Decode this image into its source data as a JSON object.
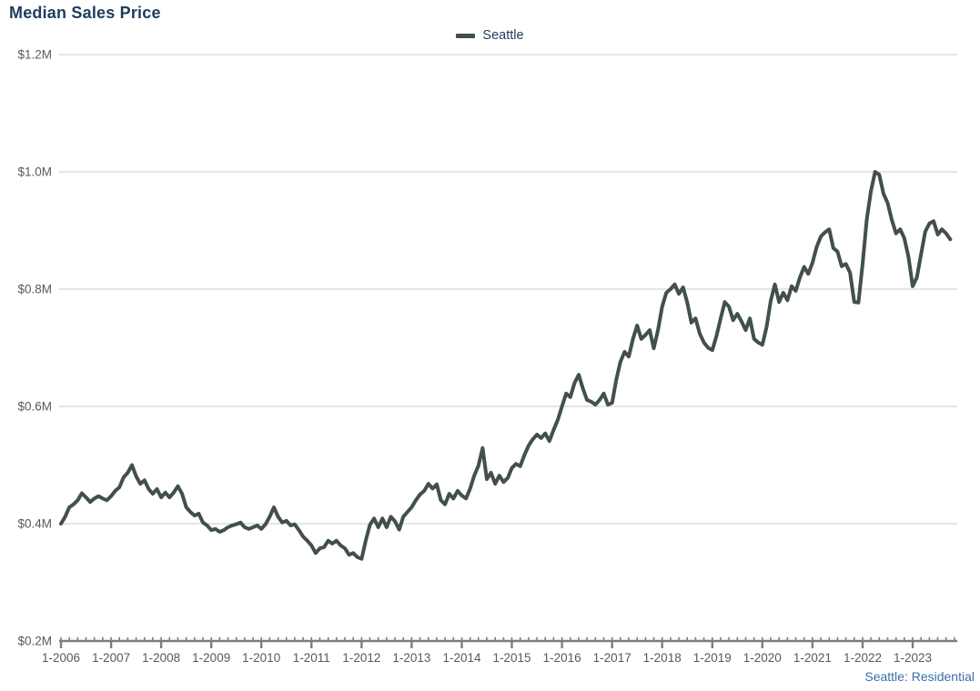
{
  "title": "Median Sales Price",
  "legend": {
    "label": "Seattle"
  },
  "footer": {
    "source_label": "Seattle: Residential"
  },
  "colors": {
    "title_text": "#1f3b5f",
    "series_line": "#42504c",
    "gridline": "#cbcbcb",
    "axis_line": "#7d7d7d",
    "tick_label": "#58595b",
    "footer_link": "#3a6fa6"
  },
  "axis": {
    "y_tick_labels": [
      "$1.2M",
      "$1.0M",
      "$0.8M",
      "$0.6M",
      "$0.4M",
      "$0.2M"
    ],
    "x_tick_labels": [
      "1-2006",
      "1-2007",
      "1-2008",
      "1-2009",
      "1-2010",
      "1-2011",
      "1-2012",
      "1-2013",
      "1-2014",
      "1-2015",
      "1-2016",
      "1-2017",
      "1-2018",
      "1-2019",
      "1-2020",
      "1-2021",
      "1-2022",
      "1-2023"
    ]
  },
  "chart_data": {
    "type": "line",
    "title": "Median Sales Price",
    "xlabel": "",
    "ylabel": "",
    "ylim": [
      0.2,
      1.2
    ],
    "y_tick_step": 0.2,
    "y_unit": "USD millions",
    "grid": "horizontal",
    "legend_position": "top-center",
    "series": [
      {
        "name": "Seattle",
        "start": "2006-01",
        "end": "2023-10",
        "frequency": "monthly",
        "unit": "USD millions",
        "values": [
          0.4,
          0.412,
          0.428,
          0.433,
          0.44,
          0.452,
          0.445,
          0.437,
          0.443,
          0.447,
          0.443,
          0.44,
          0.447,
          0.456,
          0.462,
          0.479,
          0.487,
          0.5,
          0.481,
          0.468,
          0.474,
          0.459,
          0.451,
          0.459,
          0.445,
          0.453,
          0.445,
          0.453,
          0.464,
          0.451,
          0.428,
          0.42,
          0.414,
          0.417,
          0.402,
          0.397,
          0.389,
          0.391,
          0.386,
          0.389,
          0.394,
          0.397,
          0.399,
          0.402,
          0.394,
          0.391,
          0.394,
          0.397,
          0.391,
          0.399,
          0.412,
          0.428,
          0.412,
          0.402,
          0.405,
          0.397,
          0.399,
          0.389,
          0.378,
          0.371,
          0.363,
          0.35,
          0.358,
          0.36,
          0.371,
          0.366,
          0.371,
          0.363,
          0.358,
          0.347,
          0.35,
          0.343,
          0.34,
          0.371,
          0.398,
          0.409,
          0.394,
          0.409,
          0.394,
          0.412,
          0.404,
          0.39,
          0.412,
          0.42,
          0.428,
          0.44,
          0.45,
          0.456,
          0.468,
          0.46,
          0.467,
          0.44,
          0.433,
          0.451,
          0.443,
          0.456,
          0.448,
          0.443,
          0.46,
          0.482,
          0.499,
          0.529,
          0.476,
          0.487,
          0.468,
          0.482,
          0.471,
          0.478,
          0.495,
          0.502,
          0.498,
          0.517,
          0.533,
          0.544,
          0.552,
          0.546,
          0.554,
          0.541,
          0.56,
          0.577,
          0.6,
          0.622,
          0.616,
          0.64,
          0.654,
          0.631,
          0.611,
          0.608,
          0.603,
          0.611,
          0.622,
          0.603,
          0.606,
          0.645,
          0.676,
          0.693,
          0.685,
          0.715,
          0.738,
          0.715,
          0.722,
          0.73,
          0.699,
          0.73,
          0.77,
          0.794,
          0.8,
          0.808,
          0.792,
          0.803,
          0.777,
          0.743,
          0.75,
          0.724,
          0.709,
          0.7,
          0.696,
          0.72,
          0.75,
          0.778,
          0.77,
          0.747,
          0.758,
          0.745,
          0.73,
          0.75,
          0.715,
          0.709,
          0.705,
          0.735,
          0.78,
          0.808,
          0.778,
          0.794,
          0.781,
          0.805,
          0.797,
          0.82,
          0.838,
          0.826,
          0.845,
          0.872,
          0.89,
          0.897,
          0.902,
          0.87,
          0.864,
          0.839,
          0.843,
          0.828,
          0.778,
          0.777,
          0.843,
          0.918,
          0.967,
          1.0,
          0.995,
          0.963,
          0.947,
          0.918,
          0.895,
          0.902,
          0.887,
          0.855,
          0.805,
          0.82,
          0.859,
          0.898,
          0.912,
          0.916,
          0.893,
          0.902,
          0.895,
          0.885
        ]
      }
    ]
  }
}
